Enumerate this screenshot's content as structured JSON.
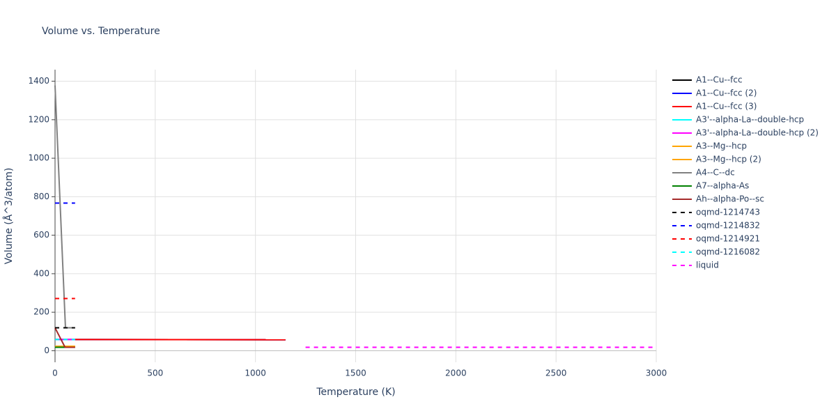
{
  "chart_data": {
    "type": "line",
    "title": "Volume vs. Temperature",
    "x_label": "Temperature (K)",
    "y_label": "Volume (Å^3/atom)",
    "xlim": [
      0,
      3000
    ],
    "xticks": [
      0,
      500,
      1000,
      1500,
      2000,
      2500,
      3000
    ],
    "ylim": [
      -60,
      1460
    ],
    "yticks": [
      0,
      200,
      400,
      600,
      800,
      1000,
      1200,
      1400
    ],
    "grid": true,
    "series": [
      {
        "name": "A1--Cu--fcc",
        "color": "#000000",
        "dash": false,
        "x": [
          0,
          1150
        ],
        "values": [
          58,
          57
        ]
      },
      {
        "name": "A1--Cu--fcc (2)",
        "color": "#0000ff",
        "dash": false,
        "x": [
          0,
          1150
        ],
        "values": [
          58,
          57
        ]
      },
      {
        "name": "A1--Cu--fcc (3)",
        "color": "#ff0000",
        "dash": false,
        "x": [
          0,
          1150
        ],
        "values": [
          58,
          57
        ]
      },
      {
        "name": "A3'--alpha-La--double-hcp",
        "color": "#00ffff",
        "dash": false,
        "x": [
          0,
          100
        ],
        "values": [
          58,
          58
        ]
      },
      {
        "name": "A3'--alpha-La--double-hcp (2)",
        "color": "#ff00ff",
        "dash": false,
        "x": [
          0,
          100
        ],
        "values": [
          58,
          58
        ]
      },
      {
        "name": "A3--Mg--hcp",
        "color": "#ffa500",
        "dash": false,
        "x": [
          0,
          100
        ],
        "values": [
          23,
          23
        ]
      },
      {
        "name": "A3--Mg--hcp (2)",
        "color": "#ffa500",
        "dash": false,
        "x": [
          0,
          100
        ],
        "values": [
          23,
          23
        ]
      },
      {
        "name": "A4--C--dc",
        "color": "#808080",
        "dash": false,
        "x": [
          0,
          52,
          100
        ],
        "values": [
          1378,
          119,
          119
        ]
      },
      {
        "name": "A7--alpha-As",
        "color": "#008000",
        "dash": false,
        "x": [
          0,
          100
        ],
        "values": [
          18,
          18
        ]
      },
      {
        "name": "Ah--alpha-Po--sc",
        "color": "#a52a2a",
        "dash": false,
        "x": [
          0,
          50,
          100
        ],
        "values": [
          119,
          18,
          18
        ]
      },
      {
        "name": "oqmd-1214743",
        "color": "#000000",
        "dash": true,
        "x": [
          0,
          100
        ],
        "values": [
          119,
          119
        ]
      },
      {
        "name": "oqmd-1214832",
        "color": "#0000ff",
        "dash": true,
        "x": [
          0,
          100
        ],
        "values": [
          767,
          767
        ]
      },
      {
        "name": "oqmd-1214921",
        "color": "#ff0000",
        "dash": true,
        "x": [
          0,
          100
        ],
        "values": [
          271,
          271
        ]
      },
      {
        "name": "oqmd-1216082",
        "color": "#00ffff",
        "dash": true,
        "x": [
          0,
          100
        ],
        "values": [
          58,
          58
        ]
      },
      {
        "name": "liquid",
        "color": "#ff00ff",
        "dash": true,
        "x": [
          1250,
          3000
        ],
        "values": [
          18,
          18
        ]
      }
    ]
  }
}
